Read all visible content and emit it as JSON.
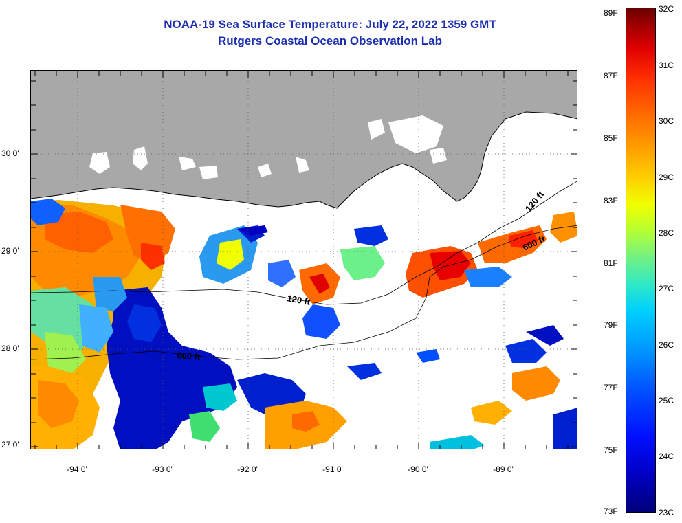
{
  "header": {
    "title_line1": "NOAA-19 Sea Surface Temperature:  July 22, 2022 1359 GMT",
    "title_line2": "Rutgers Coastal Ocean Observation Lab"
  },
  "map": {
    "latitude_labels": [
      "30 0'",
      "29 0'",
      "28 0'",
      "27 0'"
    ],
    "longitude_labels": [
      "-94 0'",
      "-93 0'",
      "-92 0'",
      "-91 0'",
      "-90 0'",
      "-89 0'"
    ],
    "contour_labels": [
      "120 ft",
      "600 ft",
      "120 ft",
      "600 ft"
    ],
    "colors": {
      "land": "#a8a8a8",
      "cloud": "#ffffff",
      "coast": "#000000",
      "title": "#1c2fb0"
    }
  },
  "colorbar": {
    "fahrenheit_labels": [
      "89F",
      "87F",
      "85F",
      "83F",
      "81F",
      "79F",
      "77F",
      "75F",
      "73F"
    ],
    "celsius_labels": [
      "32C",
      "31C",
      "30C",
      "29C",
      "28C",
      "27C",
      "26C",
      "25C",
      "24C",
      "23C"
    ]
  }
}
